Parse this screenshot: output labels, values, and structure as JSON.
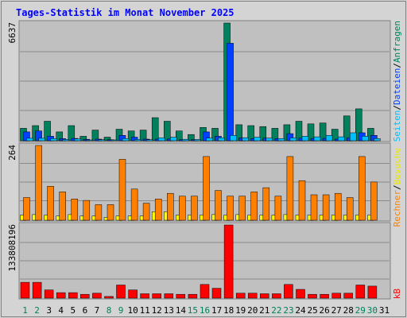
{
  "chart_data": {
    "type": "bar",
    "title": "Tages-Statistik im Monat November 2025",
    "categories": [
      "1",
      "2",
      "3",
      "4",
      "5",
      "6",
      "7",
      "8",
      "9",
      "10",
      "11",
      "12",
      "13",
      "14",
      "15",
      "16",
      "17",
      "18",
      "19",
      "20",
      "21",
      "22",
      "23",
      "24",
      "25",
      "26",
      "27",
      "28",
      "29",
      "30",
      "31"
    ],
    "weekend_days": [
      "1",
      "2",
      "8",
      "9",
      "15",
      "16",
      "22",
      "23",
      "29",
      "30"
    ],
    "panels": [
      {
        "name": "requests-files-pages",
        "max_label": "6637",
        "ymax": 6637,
        "series": [
          {
            "name": "Anfragen",
            "color": "#00805c",
            "values": [
              700,
              850,
              1100,
              500,
              850,
              250,
              600,
              200,
              650,
              550,
              600,
              1300,
              1100,
              550,
              350,
              750,
              700,
              6637,
              900,
              850,
              800,
              700,
              900,
              1100,
              950,
              1000,
              650,
              1400,
              1800,
              700,
              0
            ]
          },
          {
            "name": "Dateien",
            "color": "#0040ff",
            "values": [
              500,
              550,
              250,
              120,
              130,
              80,
              90,
              60,
              300,
              200,
              90,
              90,
              100,
              60,
              60,
              500,
              250,
              5500,
              160,
              120,
              150,
              120,
              400,
              150,
              130,
              140,
              90,
              160,
              450,
              300,
              0
            ]
          },
          {
            "name": "Seiten",
            "color": "#00c0ff",
            "values": [
              140,
              140,
              120,
              70,
              100,
              40,
              60,
              30,
              120,
              70,
              60,
              160,
              200,
              80,
              70,
              150,
              160,
              300,
              170,
              200,
              150,
              120,
              160,
              250,
              220,
              300,
              220,
              450,
              250,
              120,
              0
            ]
          }
        ]
      },
      {
        "name": "visits-sites",
        "max_label": "264",
        "ymax": 264,
        "series": [
          {
            "name": "Besuche",
            "color": "#ffff00",
            "values": [
              18,
              20,
              18,
              15,
              20,
              15,
              15,
              10,
              15,
              15,
              15,
              30,
              30,
              18,
              18,
              18,
              20,
              18,
              20,
              18,
              18,
              18,
              20,
              18,
              18,
              18,
              18,
              18,
              18,
              18,
              0
            ]
          },
          {
            "name": "Rechner",
            "color": "#ff8000",
            "values": [
              80,
              264,
              120,
              100,
              75,
              70,
              55,
              55,
              215,
              110,
              60,
              75,
              95,
              85,
              85,
              225,
              105,
              85,
              85,
              100,
              115,
              85,
              225,
              140,
              90,
              90,
              95,
              80,
              225,
              135,
              0
            ]
          }
        ]
      },
      {
        "name": "traffic",
        "max_label": "133808196",
        "ymax": 133808196,
        "series": [
          {
            "name": "kB",
            "color": "#ff0000",
            "values": [
              29000000,
              29000000,
              15000000,
              10000000,
              10000000,
              7000000,
              9000000,
              3000000,
              24000000,
              15000000,
              8000000,
              8000000,
              8000000,
              7000000,
              7000000,
              25000000,
              18000000,
              133808196,
              9000000,
              9000000,
              8000000,
              8000000,
              25000000,
              16000000,
              7000000,
              7000000,
              9000000,
              9000000,
              24000000,
              22000000,
              0
            ]
          }
        ]
      }
    ],
    "legends": {
      "panel1": [
        {
          "label": "Anfragen",
          "color": "#00805c"
        },
        {
          "label": "Dateien",
          "color": "#0040ff"
        },
        {
          "label": "Seiten",
          "color": "#00c0ff"
        }
      ],
      "panel2": [
        {
          "label": "Besuche",
          "color": "#e8e800"
        },
        {
          "label": "Rechner",
          "color": "#ff8000"
        }
      ],
      "panel3": [
        {
          "label": "kB",
          "color": "#ff0000"
        }
      ],
      "separator": "/"
    },
    "colors": {
      "title": "#0000ff",
      "plot_background": "#c0c0c0",
      "outer_background": "#d4d4d4",
      "weekday_label": "#000000",
      "weekend_label": "#00805c"
    },
    "grid": true
  }
}
